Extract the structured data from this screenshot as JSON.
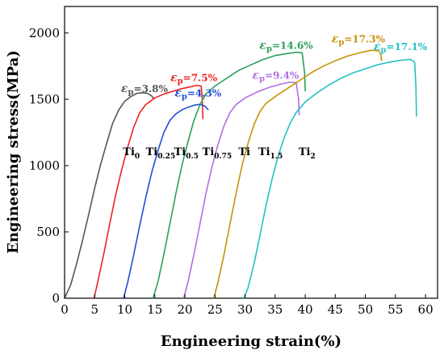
{
  "chart_data": {
    "type": "line",
    "xlabel": "Engineering strain(%)",
    "ylabel": "Engineering stress(MPa)",
    "xlim": [
      0,
      62
    ],
    "ylim": [
      0,
      2200
    ],
    "xticks": [
      0,
      5,
      10,
      15,
      20,
      25,
      30,
      35,
      40,
      45,
      50,
      55,
      60
    ],
    "yticks": [
      0,
      500,
      1000,
      1500,
      2000
    ],
    "grid": false,
    "series": [
      {
        "base": "Ti",
        "sub": "0",
        "color": "#555555",
        "label_at": [
          9.7,
          1080
        ],
        "annotation": {
          "text": "ε",
          "sub": "p",
          "value": "=3.8%",
          "at": [
            9.4,
            1555
          ]
        },
        "points": [
          [
            0,
            0
          ],
          [
            1,
            100
          ],
          [
            2,
            260
          ],
          [
            3,
            440
          ],
          [
            4,
            630
          ],
          [
            5,
            830
          ],
          [
            6,
            1010
          ],
          [
            7,
            1170
          ],
          [
            8,
            1320
          ],
          [
            9,
            1420
          ],
          [
            10,
            1485
          ],
          [
            11,
            1520
          ],
          [
            12,
            1545
          ],
          [
            13,
            1550
          ],
          [
            13.8,
            1545
          ],
          [
            14.5,
            1525
          ],
          [
            14.9,
            1500
          ]
        ]
      },
      {
        "base": "Ti",
        "sub": "0.25",
        "color": "#ee2222",
        "label_at": [
          13.5,
          1080
        ],
        "annotation": {
          "text": "ε",
          "sub": "p",
          "value": "=7.5%",
          "at": [
            17.6,
            1635
          ]
        },
        "points": [
          [
            4.9,
            0
          ],
          [
            5.5,
            120
          ],
          [
            6.5,
            330
          ],
          [
            7.5,
            560
          ],
          [
            8.5,
            780
          ],
          [
            9.5,
            970
          ],
          [
            10.5,
            1140
          ],
          [
            11.5,
            1290
          ],
          [
            12.5,
            1400
          ],
          [
            13.5,
            1460
          ],
          [
            15,
            1510
          ],
          [
            16.5,
            1540
          ],
          [
            18,
            1560
          ],
          [
            19.5,
            1580
          ],
          [
            21,
            1595
          ],
          [
            22,
            1605
          ],
          [
            22.7,
            1600
          ],
          [
            22.9,
            1500
          ],
          [
            23,
            1350
          ]
        ]
      },
      {
        "base": "Ti",
        "sub": "0.5",
        "color": "#1f4fd8",
        "label_at": [
          18.2,
          1080
        ],
        "annotation": {
          "text": "ε",
          "sub": "p",
          "value": "=4.3%",
          "at": [
            18.3,
            1520
          ]
        },
        "points": [
          [
            9.8,
            0
          ],
          [
            10.5,
            120
          ],
          [
            11.5,
            330
          ],
          [
            12.5,
            550
          ],
          [
            13.5,
            760
          ],
          [
            14.5,
            950
          ],
          [
            15.5,
            1110
          ],
          [
            16.5,
            1250
          ],
          [
            17.5,
            1340
          ],
          [
            18.5,
            1390
          ],
          [
            19.5,
            1420
          ],
          [
            20.5,
            1440
          ],
          [
            21.5,
            1455
          ],
          [
            22.5,
            1462
          ],
          [
            23.3,
            1450
          ],
          [
            23.9,
            1420
          ]
        ]
      },
      {
        "base": "Ti",
        "sub": "0.75",
        "color": "#2aa05a",
        "label_at": [
          22.9,
          1080
        ],
        "annotation": {
          "text": "ε",
          "sub": "p",
          "value": "=14.6%",
          "at": [
            32.4,
            1880
          ]
        },
        "points": [
          [
            14.7,
            0
          ],
          [
            15.5,
            120
          ],
          [
            16.5,
            330
          ],
          [
            17.5,
            560
          ],
          [
            18.5,
            790
          ],
          [
            19.5,
            1000
          ],
          [
            20.5,
            1180
          ],
          [
            21.5,
            1340
          ],
          [
            22.5,
            1460
          ],
          [
            23.5,
            1540
          ],
          [
            25,
            1600
          ],
          [
            27,
            1660
          ],
          [
            29,
            1720
          ],
          [
            31,
            1760
          ],
          [
            33,
            1800
          ],
          [
            35,
            1830
          ],
          [
            37,
            1845
          ],
          [
            38.5,
            1855
          ],
          [
            39.5,
            1850
          ],
          [
            39.9,
            1700
          ],
          [
            40,
            1560
          ]
        ]
      },
      {
        "base": "Ti",
        "sub": "",
        "color": "#b06ee0",
        "label_at": [
          28.9,
          1080
        ],
        "annotation": {
          "text": "ε",
          "sub": "p",
          "value": "=9.4%",
          "at": [
            31.2,
            1655
          ]
        },
        "points": [
          [
            19.8,
            0
          ],
          [
            20.5,
            120
          ],
          [
            21.5,
            330
          ],
          [
            22.5,
            560
          ],
          [
            23.5,
            790
          ],
          [
            24.5,
            990
          ],
          [
            25.5,
            1160
          ],
          [
            26.5,
            1300
          ],
          [
            27.5,
            1400
          ],
          [
            28.5,
            1460
          ],
          [
            30,
            1510
          ],
          [
            32,
            1555
          ],
          [
            34,
            1590
          ],
          [
            36,
            1615
          ],
          [
            37.5,
            1630
          ],
          [
            38.5,
            1625
          ],
          [
            38.9,
            1500
          ],
          [
            39,
            1380
          ]
        ]
      },
      {
        "base": "Ti",
        "sub": "1.5",
        "color": "#c8920a",
        "label_at": [
          32.2,
          1080
        ],
        "annotation": {
          "text": "ε",
          "sub": "p",
          "value": "=17.3%",
          "at": [
            44.4,
            1930
          ]
        },
        "points": [
          [
            24.8,
            0
          ],
          [
            25.5,
            120
          ],
          [
            26.5,
            330
          ],
          [
            27.5,
            560
          ],
          [
            28.5,
            790
          ],
          [
            29.5,
            1000
          ],
          [
            30.5,
            1170
          ],
          [
            31.5,
            1310
          ],
          [
            32.5,
            1410
          ],
          [
            33.5,
            1470
          ],
          [
            35,
            1520
          ],
          [
            37,
            1580
          ],
          [
            39,
            1640
          ],
          [
            41,
            1700
          ],
          [
            43,
            1750
          ],
          [
            45,
            1790
          ],
          [
            47,
            1825
          ],
          [
            49,
            1850
          ],
          [
            51,
            1870
          ],
          [
            52.3,
            1865
          ],
          [
            52.6,
            1830
          ],
          [
            52.7,
            1790
          ]
        ]
      },
      {
        "base": "Ti",
        "sub": "2",
        "color": "#22c2c2",
        "label_at": [
          38.9,
          1080
        ],
        "annotation": {
          "text": "ε",
          "sub": "p",
          "value": "=17.1%",
          "at": [
            51.4,
            1870
          ]
        },
        "points": [
          [
            29.8,
            0
          ],
          [
            30.5,
            80
          ],
          [
            31.5,
            260
          ],
          [
            32.5,
            480
          ],
          [
            33.5,
            700
          ],
          [
            34.5,
            900
          ],
          [
            35.5,
            1070
          ],
          [
            36.5,
            1210
          ],
          [
            37.5,
            1320
          ],
          [
            38.5,
            1400
          ],
          [
            40,
            1480
          ],
          [
            42,
            1550
          ],
          [
            44,
            1610
          ],
          [
            46,
            1660
          ],
          [
            48,
            1700
          ],
          [
            50,
            1730
          ],
          [
            52,
            1760
          ],
          [
            54,
            1780
          ],
          [
            56,
            1795
          ],
          [
            57.5,
            1800
          ],
          [
            58.2,
            1780
          ],
          [
            58.4,
            1600
          ],
          [
            58.5,
            1370
          ]
        ]
      }
    ]
  }
}
